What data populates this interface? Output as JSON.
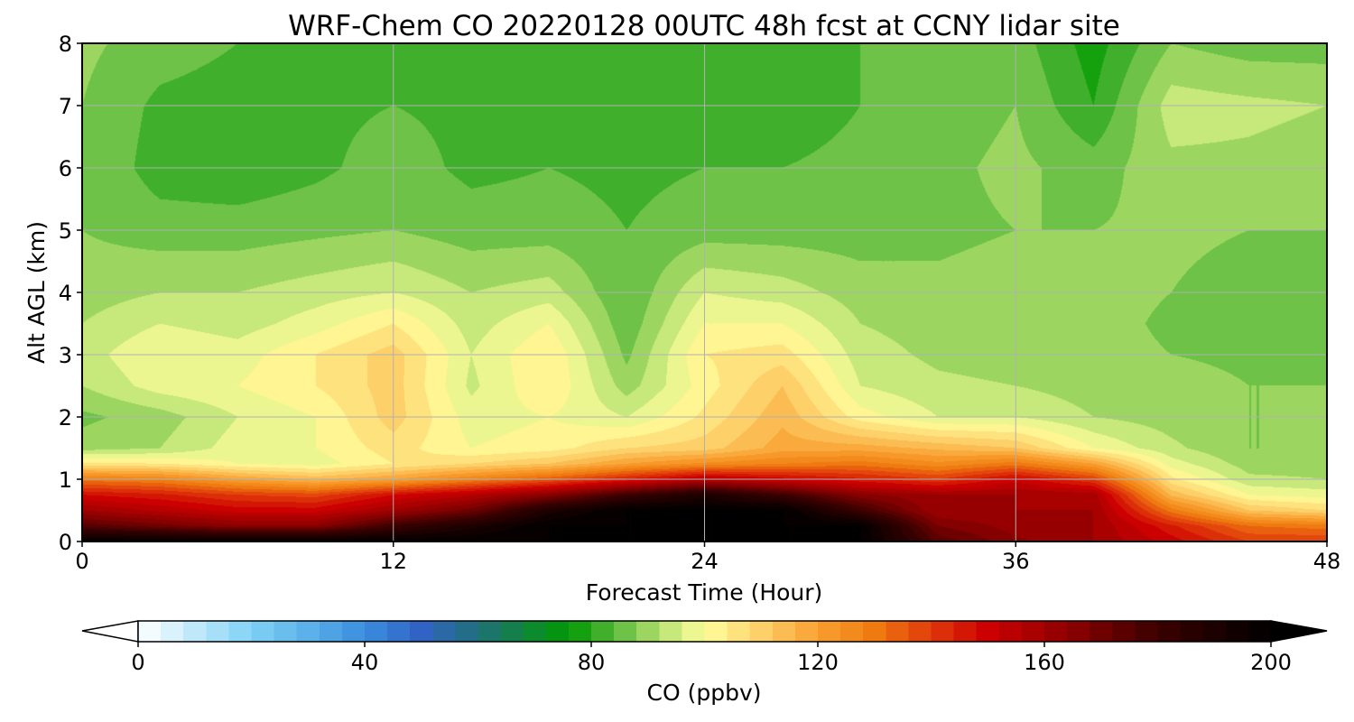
{
  "chart_data": {
    "type": "heatmap",
    "title": "WRF-Chem CO  20220128 00UTC 48h fcst at CCNY lidar site",
    "xlabel": "Forecast Time (Hour)",
    "ylabel": "Alt AGL (km)",
    "xlim": [
      0,
      48
    ],
    "ylim": [
      0,
      8
    ],
    "xticks": [
      "0",
      "12",
      "24",
      "36",
      "48"
    ],
    "yticks": [
      "0",
      "1",
      "2",
      "3",
      "4",
      "5",
      "6",
      "7",
      "8"
    ],
    "grid": true,
    "colorbar": {
      "label": "CO  (ppbv)",
      "vmin": 0,
      "vmax": 200,
      "ticks": [
        "0",
        "40",
        "80",
        "120",
        "160",
        "200"
      ],
      "extend": "both",
      "color_stops": [
        {
          "v": 0,
          "c": "#ffffff"
        },
        {
          "v": 20,
          "c": "#7fd3f5"
        },
        {
          "v": 40,
          "c": "#3a8ede"
        },
        {
          "v": 50,
          "c": "#3063c4"
        },
        {
          "v": 60,
          "c": "#20707a"
        },
        {
          "v": 76,
          "c": "#009900"
        },
        {
          "v": 84,
          "c": "#55b83a"
        },
        {
          "v": 92,
          "c": "#b4e06e"
        },
        {
          "v": 100,
          "c": "#fffe9c"
        },
        {
          "v": 110,
          "c": "#fdd06a"
        },
        {
          "v": 120,
          "c": "#f9a030"
        },
        {
          "v": 130,
          "c": "#ef7b10"
        },
        {
          "v": 140,
          "c": "#e03a0a"
        },
        {
          "v": 150,
          "c": "#cc0000"
        },
        {
          "v": 165,
          "c": "#8a0000"
        },
        {
          "v": 180,
          "c": "#3a0000"
        },
        {
          "v": 200,
          "c": "#000000"
        }
      ]
    },
    "x_hours": [
      0,
      3,
      6,
      9,
      12,
      15,
      18,
      21,
      24,
      27,
      30,
      33,
      36,
      39,
      42,
      45,
      48
    ],
    "y_km": [
      0.0,
      0.25,
      0.5,
      0.75,
      1.0,
      1.25,
      1.5,
      2.0,
      2.5,
      3.0,
      3.5,
      4.0,
      5.0,
      6.0,
      7.0,
      8.0
    ],
    "values_ppbv": [
      [
        200,
        200,
        200,
        200,
        200,
        200,
        200,
        200,
        200,
        200,
        200,
        175,
        165,
        160,
        150,
        140,
        140
      ],
      [
        175,
        170,
        165,
        165,
        180,
        190,
        200,
        200,
        200,
        200,
        200,
        168,
        162,
        160,
        145,
        132,
        130
      ],
      [
        160,
        155,
        150,
        150,
        160,
        170,
        190,
        200,
        200,
        200,
        180,
        160,
        160,
        160,
        130,
        112,
        108
      ],
      [
        148,
        145,
        140,
        138,
        148,
        155,
        165,
        180,
        190,
        180,
        165,
        160,
        160,
        158,
        115,
        100,
        98
      ],
      [
        130,
        128,
        120,
        115,
        120,
        128,
        135,
        145,
        155,
        150,
        145,
        140,
        150,
        140,
        105,
        93,
        92
      ],
      [
        105,
        104,
        100,
        98,
        104,
        108,
        112,
        120,
        125,
        128,
        130,
        125,
        130,
        120,
        98,
        90,
        90
      ],
      [
        90,
        92,
        98,
        100,
        106,
        100,
        102,
        108,
        110,
        118,
        118,
        115,
        112,
        100,
        93,
        88,
        88
      ],
      [
        87,
        90,
        96,
        100,
        110,
        98,
        100,
        96,
        105,
        115,
        102,
        96,
        96,
        92,
        90,
        88,
        88
      ],
      [
        92,
        98,
        100,
        104,
        110,
        95,
        104,
        90,
        102,
        112,
        96,
        93,
        92,
        90,
        90,
        88,
        88
      ],
      [
        94,
        100,
        98,
        104,
        110,
        96,
        104,
        87,
        104,
        106,
        94,
        91,
        90,
        90,
        88,
        87,
        87
      ],
      [
        92,
        96,
        94,
        98,
        104,
        94,
        100,
        85,
        100,
        100,
        92,
        90,
        90,
        90,
        87,
        86,
        86
      ],
      [
        90,
        92,
        92,
        94,
        96,
        92,
        94,
        84,
        96,
        94,
        90,
        89,
        90,
        90,
        88,
        86,
        86
      ],
      [
        88,
        86,
        86,
        87,
        88,
        86,
        86,
        84,
        86,
        86,
        86,
        87,
        88,
        88,
        89,
        88,
        88
      ],
      [
        88,
        82,
        81,
        83,
        86,
        83,
        84,
        83,
        84,
        84,
        85,
        87,
        89,
        86,
        91,
        91,
        90
      ],
      [
        88,
        83,
        82,
        83,
        84,
        83,
        82,
        82,
        82,
        82,
        84,
        86,
        88,
        80,
        94,
        93,
        92
      ],
      [
        89,
        86,
        84,
        84,
        84,
        84,
        83,
        83,
        83,
        83,
        84,
        86,
        86,
        78,
        88,
        86,
        86
      ]
    ]
  }
}
